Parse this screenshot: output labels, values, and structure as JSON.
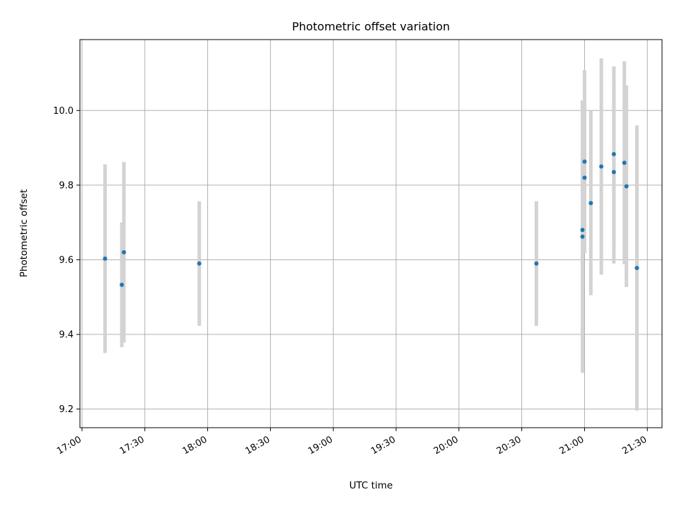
{
  "chart_data": {
    "type": "scatter",
    "title": "Photometric offset variation",
    "xlabel": "UTC time",
    "ylabel": "Photometric offset",
    "x_tick_labels": [
      "17:00",
      "17:30",
      "18:00",
      "18:30",
      "19:00",
      "19:30",
      "20:00",
      "20:30",
      "21:00",
      "21:30"
    ],
    "y_tick_labels": [
      "9.2",
      "9.4",
      "9.6",
      "9.8",
      "10.0"
    ],
    "y_ticks": [
      9.2,
      9.4,
      9.6,
      9.8,
      10.0
    ],
    "xlim": [
      "16:59",
      "21:37"
    ],
    "ylim": [
      9.15,
      10.19
    ],
    "grid": true,
    "colors": {
      "point": "#1f77b4",
      "errorbar": "#d3d3d3",
      "grid": "#b0b0b0"
    },
    "points": [
      {
        "x": "17:11",
        "y": 9.603,
        "yerr": 0.253
      },
      {
        "x": "17:19",
        "y": 9.533,
        "yerr": 0.167
      },
      {
        "x": "17:20",
        "y": 9.62,
        "yerr": 0.242
      },
      {
        "x": "17:56",
        "y": 9.59,
        "yerr": 0.167
      },
      {
        "x": "20:37",
        "y": 9.59,
        "yerr": 0.167
      },
      {
        "x": "20:59",
        "y": 9.662,
        "yerr": 0.365
      },
      {
        "x": "20:59",
        "y": 9.68,
        "yerr": 0.315
      },
      {
        "x": "21:00",
        "y": 9.82,
        "yerr": 0.2
      },
      {
        "x": "21:00",
        "y": 9.863,
        "yerr": 0.245
      },
      {
        "x": "21:03",
        "y": 9.752,
        "yerr": 0.247
      },
      {
        "x": "21:08",
        "y": 9.85,
        "yerr": 0.29
      },
      {
        "x": "21:14",
        "y": 9.883,
        "yerr": 0.235
      },
      {
        "x": "21:14",
        "y": 9.835,
        "yerr": 0.245
      },
      {
        "x": "21:19",
        "y": 9.86,
        "yerr": 0.272
      },
      {
        "x": "21:20",
        "y": 9.797,
        "yerr": 0.27
      },
      {
        "x": "21:25",
        "y": 9.578,
        "yerr": 0.382
      }
    ]
  }
}
